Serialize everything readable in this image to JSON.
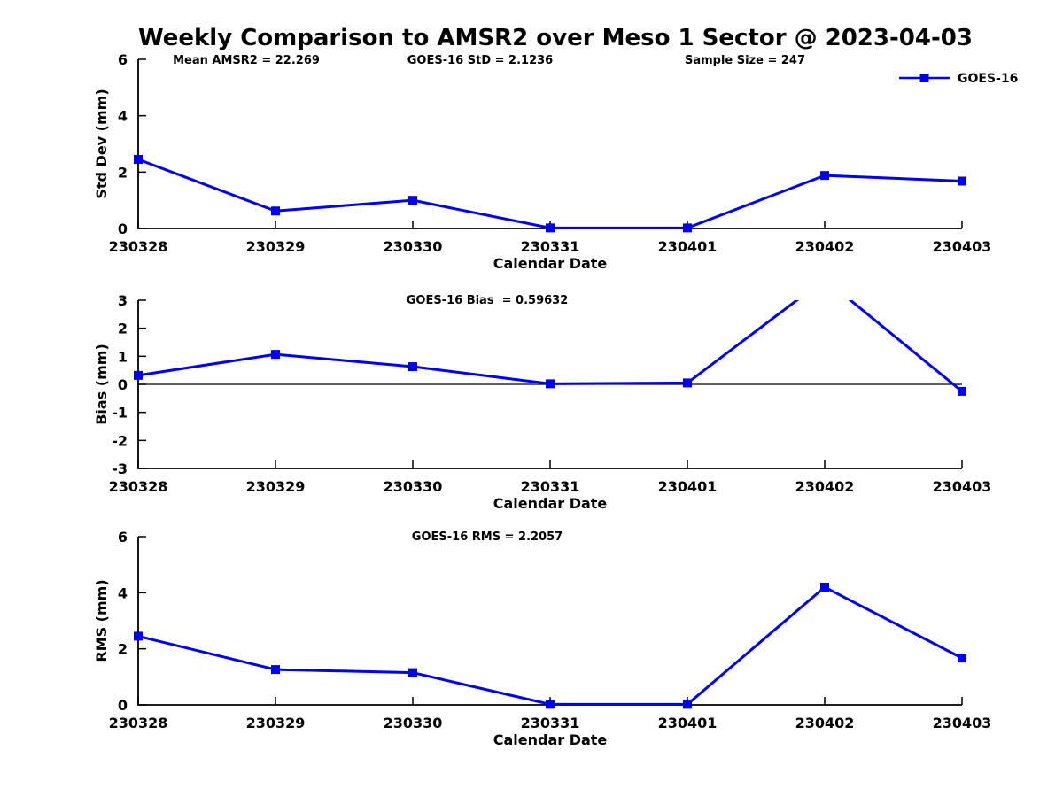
{
  "title": "Weekly Comparison to AMSR2 over Meso 1 Sector @ 2023-04-03",
  "colors": {
    "line": "#0000EE",
    "axis": "#000000",
    "zero_line": "#000000",
    "background": "#FFFFFF"
  },
  "chart_data": [
    {
      "id": "stddev",
      "type": "line",
      "ylabel": "Std Dev (mm)",
      "xlabel": "Calendar Date",
      "ylim": [
        0,
        6
      ],
      "yticks": [
        0,
        2,
        4,
        6
      ],
      "categories": [
        "230328",
        "230329",
        "230330",
        "230331",
        "230401",
        "230402",
        "230403"
      ],
      "series": [
        {
          "name": "GOES-16",
          "values": [
            2.45,
            0.62,
            1.0,
            0.02,
            0.02,
            1.88,
            1.68
          ]
        }
      ],
      "top_labels": [
        "Mean AMSR2 = 22.269",
        "GOES-16 StD = 2.1236",
        "Sample Size = 247"
      ],
      "legend": {
        "label": "GOES-16",
        "position": "top-right"
      },
      "marker": "square",
      "grid": false
    },
    {
      "id": "bias",
      "type": "line",
      "title": "GOES-16 Bias  = 0.59632",
      "ylabel": "Bias (mm)",
      "xlabel": "Calendar Date",
      "ylim": [
        -3,
        3
      ],
      "yticks": [
        -3,
        -2,
        -1,
        0,
        1,
        2,
        3
      ],
      "categories": [
        "230328",
        "230329",
        "230330",
        "230331",
        "230401",
        "230402",
        "230403"
      ],
      "series": [
        {
          "name": "GOES-16",
          "values": [
            0.32,
            1.07,
            0.63,
            0.02,
            0.05,
            3.75,
            -0.25
          ]
        }
      ],
      "zero_line": true,
      "clip_to_ylim": true,
      "marker": "square",
      "grid": false
    },
    {
      "id": "rms",
      "type": "line",
      "title": "GOES-16 RMS = 2.2057",
      "ylabel": "RMS (mm)",
      "xlabel": "Calendar Date",
      "ylim": [
        0,
        6
      ],
      "yticks": [
        0,
        2,
        4,
        6
      ],
      "categories": [
        "230328",
        "230329",
        "230330",
        "230331",
        "230401",
        "230402",
        "230403"
      ],
      "series": [
        {
          "name": "GOES-16",
          "values": [
            2.45,
            1.26,
            1.15,
            0.02,
            0.02,
            4.2,
            1.67
          ]
        }
      ],
      "marker": "square",
      "grid": false
    }
  ]
}
